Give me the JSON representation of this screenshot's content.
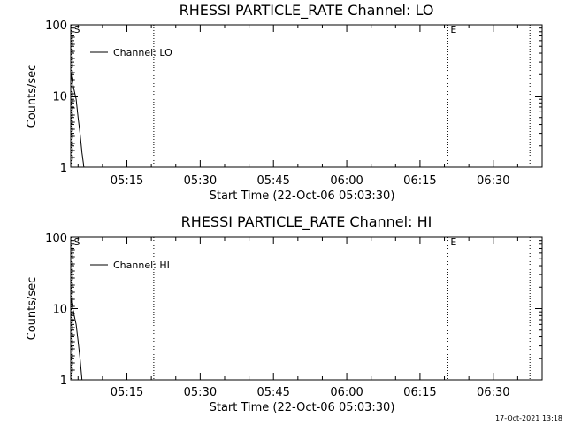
{
  "footer_timestamp": "17-Oct-2021 13:18",
  "colors": {
    "background": "#ffffff",
    "ink": "#000000"
  },
  "chart_data": [
    {
      "type": "line",
      "title": "RHESSI PARTICLE_RATE Channel: LO",
      "xlabel": "Start Time (22-Oct-06 05:03:30)",
      "ylabel": "Counts/sec",
      "yscale": "log",
      "ylim": [
        1,
        100
      ],
      "y_ticks": [
        "1",
        "10",
        "100"
      ],
      "xlim_minutes": [
        3.5,
        100
      ],
      "x_ticks": [
        "05:15",
        "05:30",
        "05:45",
        "06:00",
        "06:15",
        "06:30"
      ],
      "x_tick_minutes": [
        15,
        30,
        45,
        60,
        75,
        90
      ],
      "legend": {
        "entries": [
          "Channel: LO"
        ],
        "placement": "top-left"
      },
      "markers": [
        {
          "label": "S",
          "x_minute": 3.6
        },
        {
          "label": "",
          "x_minute": 20.5
        },
        {
          "label": "E",
          "x_minute": 80.7
        },
        {
          "label": "",
          "x_minute": 97.5
        }
      ],
      "series": [
        {
          "name": "Channel: LO",
          "x_minutes": [
            3.5,
            3.8,
            4.2,
            4.6,
            5.0,
            5.4,
            5.8,
            6.2
          ],
          "y": [
            22,
            16,
            12,
            9,
            5,
            3,
            1.6,
            1.0
          ]
        }
      ],
      "grid": false
    },
    {
      "type": "line",
      "title": "RHESSI PARTICLE_RATE Channel: HI",
      "xlabel": "Start Time (22-Oct-06 05:03:30)",
      "ylabel": "Counts/sec",
      "yscale": "log",
      "ylim": [
        1,
        100
      ],
      "y_ticks": [
        "1",
        "10",
        "100"
      ],
      "xlim_minutes": [
        3.5,
        100
      ],
      "x_ticks": [
        "05:15",
        "05:30",
        "05:45",
        "06:00",
        "06:15",
        "06:30"
      ],
      "x_tick_minutes": [
        15,
        30,
        45,
        60,
        75,
        90
      ],
      "legend": {
        "entries": [
          "Channel: HI"
        ],
        "placement": "top-left"
      },
      "markers": [
        {
          "label": "S",
          "x_minute": 3.6
        },
        {
          "label": "",
          "x_minute": 20.5
        },
        {
          "label": "E",
          "x_minute": 80.7
        },
        {
          "label": "",
          "x_minute": 97.5
        }
      ],
      "series": [
        {
          "name": "Channel: HI",
          "x_minutes": [
            3.5,
            3.8,
            4.2,
            4.6,
            5.0,
            5.4,
            5.8
          ],
          "y": [
            14,
            11,
            8,
            6,
            3.5,
            2,
            1.0
          ]
        }
      ],
      "grid": false
    }
  ]
}
